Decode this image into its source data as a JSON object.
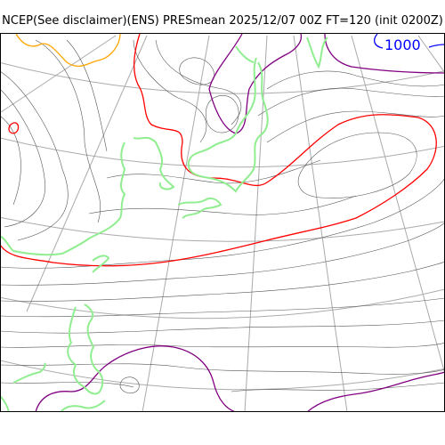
{
  "title": "NCEP(See disclaimer)(ENS) PRESmean 2025/12/07 00Z FT=120 (init 0200Z)",
  "map": {
    "contour_label": "1000",
    "colors": {
      "isobar": "#555555",
      "red_contour": "#ff0000",
      "purple_contour": "#800080",
      "orange_contour": "#ffa500",
      "blue_contour": "#0000ff",
      "coastline": "#90ee90",
      "graticule": "#aaaaaa",
      "frame": "#000000"
    }
  }
}
